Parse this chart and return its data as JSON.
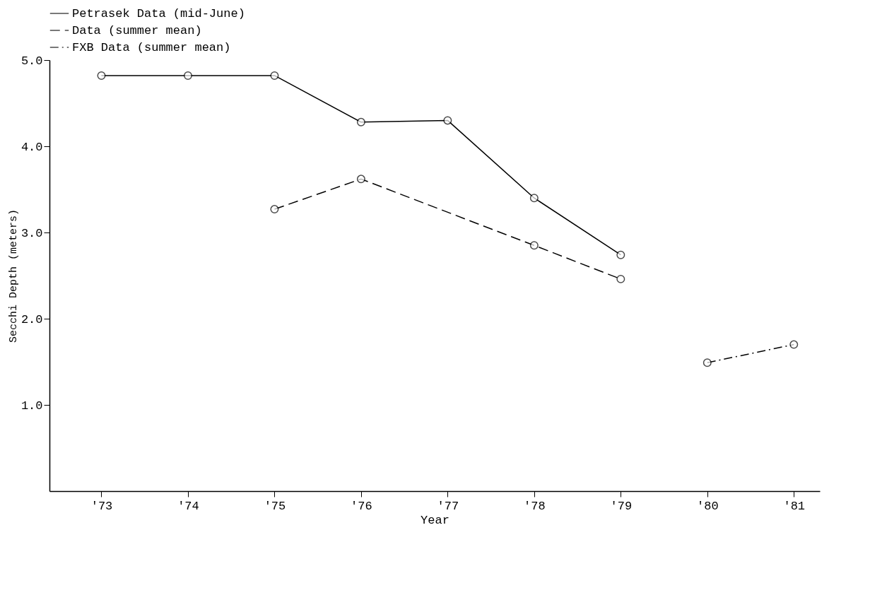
{
  "chart_data": {
    "type": "line",
    "xlabel": "Year",
    "ylabel": "Secchi Depth (meters)",
    "xlim": [
      1972.4,
      1981.3
    ],
    "ylim": [
      0,
      5
    ],
    "xticks": [
      {
        "value": 1973,
        "label": "'73"
      },
      {
        "value": 1974,
        "label": "'74"
      },
      {
        "value": 1975,
        "label": "'75"
      },
      {
        "value": 1976,
        "label": "'76"
      },
      {
        "value": 1977,
        "label": "'77"
      },
      {
        "value": 1978,
        "label": "'78"
      },
      {
        "value": 1979,
        "label": "'79"
      },
      {
        "value": 1980,
        "label": "'80"
      },
      {
        "value": 1981,
        "label": "'81"
      }
    ],
    "yticks": [
      {
        "value": 1,
        "label": "1.0"
      },
      {
        "value": 2,
        "label": "2.0"
      },
      {
        "value": 3,
        "label": "3.0"
      },
      {
        "value": 4,
        "label": "4.0"
      },
      {
        "value": 5,
        "label": "5.0"
      }
    ],
    "grid": false,
    "legend": "top",
    "marker": "circle",
    "series": [
      {
        "name": "Petrasek Data (mid-June)",
        "color": "#000000",
        "line_style": "solid",
        "x": [
          1973,
          1974,
          1975,
          1976,
          1977,
          1978,
          1979
        ],
        "values": [
          4.82,
          4.82,
          4.82,
          4.28,
          4.3,
          3.4,
          2.74
        ]
      },
      {
        "name": "Data (summer mean)",
        "color": "#000000",
        "line_style": "dashed",
        "x": [
          1975,
          1976,
          1978,
          1979
        ],
        "values": [
          3.27,
          3.62,
          2.85,
          2.46
        ]
      },
      {
        "name": "FXB Data (summer mean)",
        "color": "#000000",
        "line_style": "dashdot",
        "x": [
          1980,
          1981
        ],
        "values": [
          1.49,
          1.7
        ]
      }
    ]
  }
}
